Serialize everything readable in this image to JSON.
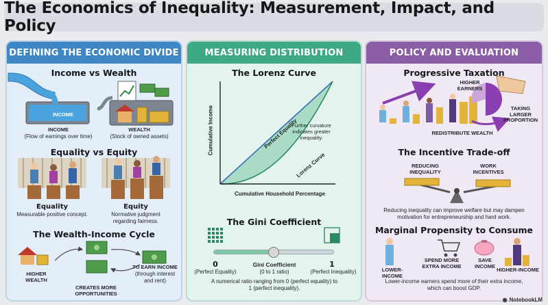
{
  "title": "The Economics of Inequality: Measurement, Impact, and Policy",
  "brand": "NotebookLM",
  "panel1": {
    "header": "DEFINING THE ECONOMIC DIVIDE",
    "income_wealth": {
      "heading": "Income vs Wealth",
      "flow_label": "INCOME",
      "income_label": "INCOME",
      "income_sub": "(Flow of earnings over time)",
      "wealth_label": "WEALTH",
      "wealth_sub": "(Stock of owned assets)"
    },
    "equality_equity": {
      "heading": "Equality vs Equity",
      "equality_label": "Equality",
      "equality_sub": "Measurable positive concept.",
      "equity_label": "Equity",
      "equity_sub": "Normative judgment regarding fairness."
    },
    "cycle": {
      "heading": "The Wealth-Income Cycle",
      "higher_wealth": "HIGHER WEALTH",
      "to_earn": "TO EARN INCOME",
      "to_earn_sub": "(through interest and rent)",
      "opportunities": "CREATES MORE OPPORTUNITIES"
    }
  },
  "panel2": {
    "header": "MEASURING DISTRIBUTION",
    "lorenz": {
      "heading": "The Lorenz Curve",
      "ylabel": "Cumulative Income",
      "xlabel": "Cumulative Household Percentage",
      "equality_line": "Perfect Equality",
      "curve_label": "Lorenz Curve",
      "note": "Further curvature indicates greater inequality."
    },
    "gini": {
      "heading": "The Gini Coefficient",
      "left_value": "0",
      "left_label": "(Perfect Equality)",
      "center_label": "Gini Coefficient",
      "center_sub": "(0 to 1 ratio)",
      "right_value": "1",
      "right_label": "(Perfect Inequality)",
      "slider_value": 0.5,
      "description": "A numerical ratio ranging from 0 (perfect equality) to 1 (perfect inequality)."
    }
  },
  "panel3": {
    "header": "POLICY AND EVALUATION",
    "taxation": {
      "heading": "Progressive Taxation",
      "higher_earners": "HIGHER EARNERS",
      "taking_larger": "TAKING LARGER PROPORTION",
      "redistribute": "REDISTRIBUTE WEALTH"
    },
    "tradeoff": {
      "heading": "The Incentive Trade-off",
      "reducing": "REDUCING INEQUALITY",
      "work": "WORK INCENTIVES",
      "description": "Reducing inequality can improve welfare but may dampen motivation for entrepreneurship and hard work."
    },
    "mpc": {
      "heading": "Marginal Propensity to Consume",
      "lower_income": "LOWER-INCOME",
      "spend_more": "SPEND MORE EXTRA INCOME",
      "save_income": "SAVE INCOME",
      "higher_income": "HIGHER-INCOME",
      "description": "Lower-income earners spend more of their extra income, which can boost GDP."
    }
  }
}
